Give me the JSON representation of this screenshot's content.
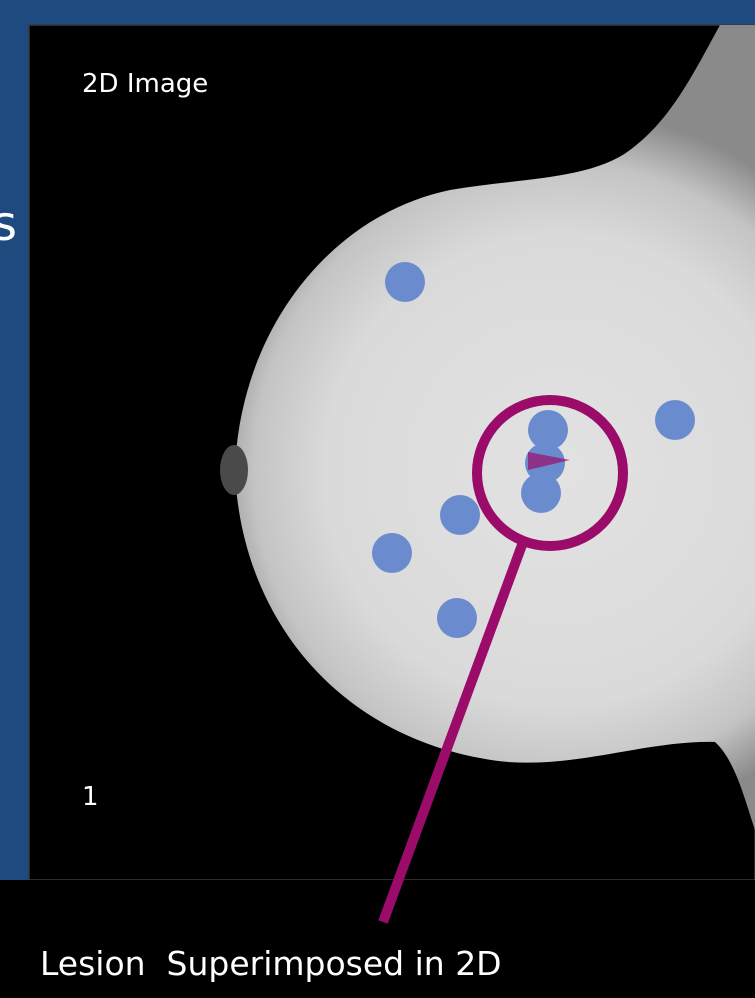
{
  "panel_label": "2D Image",
  "frame_number": "1",
  "caption": "Lesion  Superimposed in 2D",
  "cropped_text": "s"
}
